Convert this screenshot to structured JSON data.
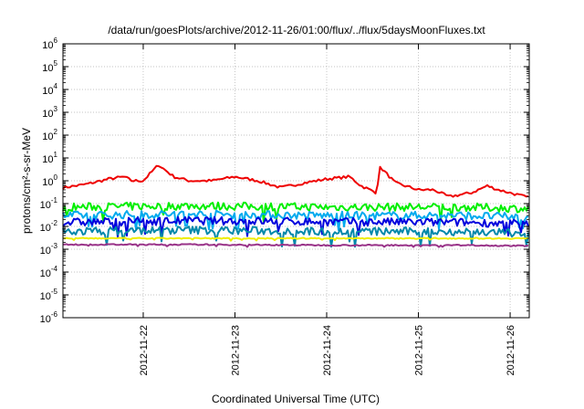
{
  "chart_data": {
    "type": "line",
    "title": "/data/run/goesPlots/archive/2012-11-26/01:00/flux/../flux/5daysMoonFluxes.txt",
    "xlabel": "Coordinated Universal Time (UTC)",
    "ylabel": "protons/cm²-s-sr-MeV",
    "y_scale": "log",
    "ylim_exp": [
      -6,
      6
    ],
    "xlim": [
      "2012-11-21 03:00",
      "2012-11-26 05:00"
    ],
    "x_ticks": [
      "2012-11-22",
      "2012-11-23",
      "2012-11-24",
      "2012-11-25",
      "2012-11-26"
    ],
    "grid": true,
    "series": [
      {
        "color": "#ee0000",
        "x": [
          "2012-11-21 03:00",
          "2012-11-21 09:00",
          "2012-11-21 15:00",
          "2012-11-21 19:00",
          "2012-11-21 21:00",
          "2012-11-22 00:00",
          "2012-11-22 04:00",
          "2012-11-22 08:00",
          "2012-11-22 12:00",
          "2012-11-22 18:00",
          "2012-11-23 00:00",
          "2012-11-23 06:00",
          "2012-11-23 12:00",
          "2012-11-23 18:00",
          "2012-11-24 00:00",
          "2012-11-24 06:00",
          "2012-11-24 09:00",
          "2012-11-24 13:00",
          "2012-11-24 14:00",
          "2012-11-24 18:00",
          "2012-11-25 00:00",
          "2012-11-25 04:00",
          "2012-11-25 08:00",
          "2012-11-25 14:00",
          "2012-11-25 18:00",
          "2012-11-25 21:00",
          "2012-11-26 05:00"
        ],
        "values": [
          0.5,
          0.7,
          1.2,
          1.5,
          1.0,
          1.0,
          5.0,
          1.5,
          1.0,
          1.0,
          1.5,
          1.0,
          0.5,
          0.8,
          1.2,
          1.5,
          0.6,
          0.3,
          4.0,
          0.8,
          0.4,
          0.4,
          0.2,
          0.3,
          0.6,
          0.4,
          0.18
        ]
      },
      {
        "color": "#00ee00",
        "x": [
          "2012-11-21 03:00",
          "2012-11-22 12:00",
          "2012-11-24 00:00",
          "2012-11-25 12:00",
          "2012-11-26 05:00"
        ],
        "values": [
          0.07,
          0.08,
          0.07,
          0.07,
          0.06
        ]
      },
      {
        "color": "#00aaee",
        "x": [
          "2012-11-21 03:00",
          "2012-11-22 12:00",
          "2012-11-24 00:00",
          "2012-11-25 12:00",
          "2012-11-26 05:00"
        ],
        "values": [
          0.03,
          0.035,
          0.03,
          0.03,
          0.025
        ]
      },
      {
        "color": "#0000dd",
        "x": [
          "2012-11-21 03:00",
          "2012-11-22 12:00",
          "2012-11-24 00:00",
          "2012-11-25 12:00",
          "2012-11-26 05:00"
        ],
        "values": [
          0.015,
          0.018,
          0.016,
          0.015,
          0.013
        ]
      },
      {
        "color": "#0088aa",
        "x": [
          "2012-11-21 03:00",
          "2012-11-22 12:00",
          "2012-11-24 00:00",
          "2012-11-25 12:00",
          "2012-11-26 05:00"
        ],
        "values": [
          0.006,
          0.007,
          0.006,
          0.006,
          0.005
        ]
      },
      {
        "color": "#eeee00",
        "x": [
          "2012-11-21 03:00",
          "2012-11-22 12:00",
          "2012-11-24 00:00",
          "2012-11-25 12:00",
          "2012-11-26 05:00"
        ],
        "values": [
          0.003,
          0.003,
          0.003,
          0.003,
          0.003
        ]
      },
      {
        "color": "#993388",
        "x": [
          "2012-11-21 03:00",
          "2012-11-22 12:00",
          "2012-11-24 00:00",
          "2012-11-25 12:00",
          "2012-11-26 05:00"
        ],
        "values": [
          0.0016,
          0.0016,
          0.0015,
          0.0015,
          0.0014
        ]
      }
    ]
  }
}
